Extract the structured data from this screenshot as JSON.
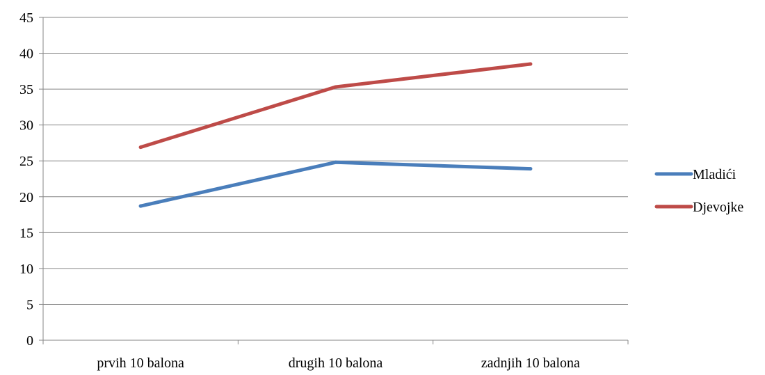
{
  "chart_data": {
    "type": "line",
    "title": "",
    "xlabel": "",
    "ylabel": "",
    "categories": [
      "prvih 10 balona",
      "drugih 10 balona",
      "zadnjih 10 balona"
    ],
    "ylim": [
      0,
      45
    ],
    "yticks": [
      0,
      5,
      10,
      15,
      20,
      25,
      30,
      35,
      40,
      45
    ],
    "grid": true,
    "legend_position": "right",
    "series": [
      {
        "name": "Mladići",
        "values": [
          18.7,
          24.8,
          23.9
        ],
        "color": "#4a7ebb"
      },
      {
        "name": "Djevojke",
        "values": [
          26.9,
          35.3,
          38.5
        ],
        "color": "#be4b48"
      }
    ]
  }
}
